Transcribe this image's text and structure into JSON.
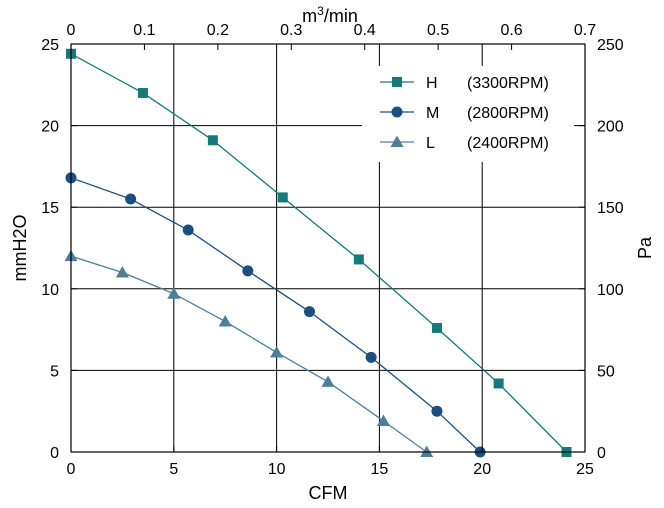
{
  "chart_data": {
    "type": "line",
    "xlabel": "CFM",
    "ylabel": "mmH2O",
    "x2label_base": "m",
    "x2label_sup": "3",
    "x2label_rest": "/min",
    "y2label": "Pa",
    "xlim": [
      0,
      25
    ],
    "ylim": [
      0,
      25
    ],
    "x2lim": [
      0,
      0.7
    ],
    "y2lim": [
      0,
      250
    ],
    "xticks": [
      "0",
      "5",
      "10",
      "15",
      "20",
      "25"
    ],
    "yticks": [
      "0",
      "5",
      "10",
      "15",
      "20",
      "25"
    ],
    "x2ticks": [
      "0",
      "0.1",
      "0.2",
      "0.3",
      "0.4",
      "0.5",
      "0.6",
      "0.7"
    ],
    "y2ticks": [
      "0",
      "50",
      "100",
      "150",
      "200",
      "250"
    ],
    "grid": true,
    "legend_position": "top-right",
    "series": [
      {
        "name": "H",
        "rpm": "(3300RPM)",
        "marker": "square",
        "color": "#157a7a",
        "x": [
          0,
          3.5,
          6.9,
          10.3,
          14.0,
          17.8,
          20.8,
          24.1
        ],
        "y": [
          24.4,
          22.0,
          19.1,
          15.6,
          11.8,
          7.6,
          4.2,
          0
        ]
      },
      {
        "name": "M",
        "rpm": "(2800RPM)",
        "marker": "circle",
        "color": "#1c4f7f",
        "x": [
          0,
          2.9,
          5.7,
          8.6,
          11.6,
          14.6,
          17.8,
          19.9
        ],
        "y": [
          16.8,
          15.5,
          13.6,
          11.1,
          8.6,
          5.8,
          2.5,
          0
        ]
      },
      {
        "name": "L",
        "rpm": "(2400RPM)",
        "marker": "triangle",
        "color": "#4f7f98",
        "x": [
          0,
          2.5,
          5.0,
          7.5,
          10.0,
          12.5,
          15.2,
          17.3
        ],
        "y": [
          12.0,
          11.0,
          9.7,
          8.0,
          6.1,
          4.3,
          1.9,
          0
        ]
      }
    ]
  }
}
